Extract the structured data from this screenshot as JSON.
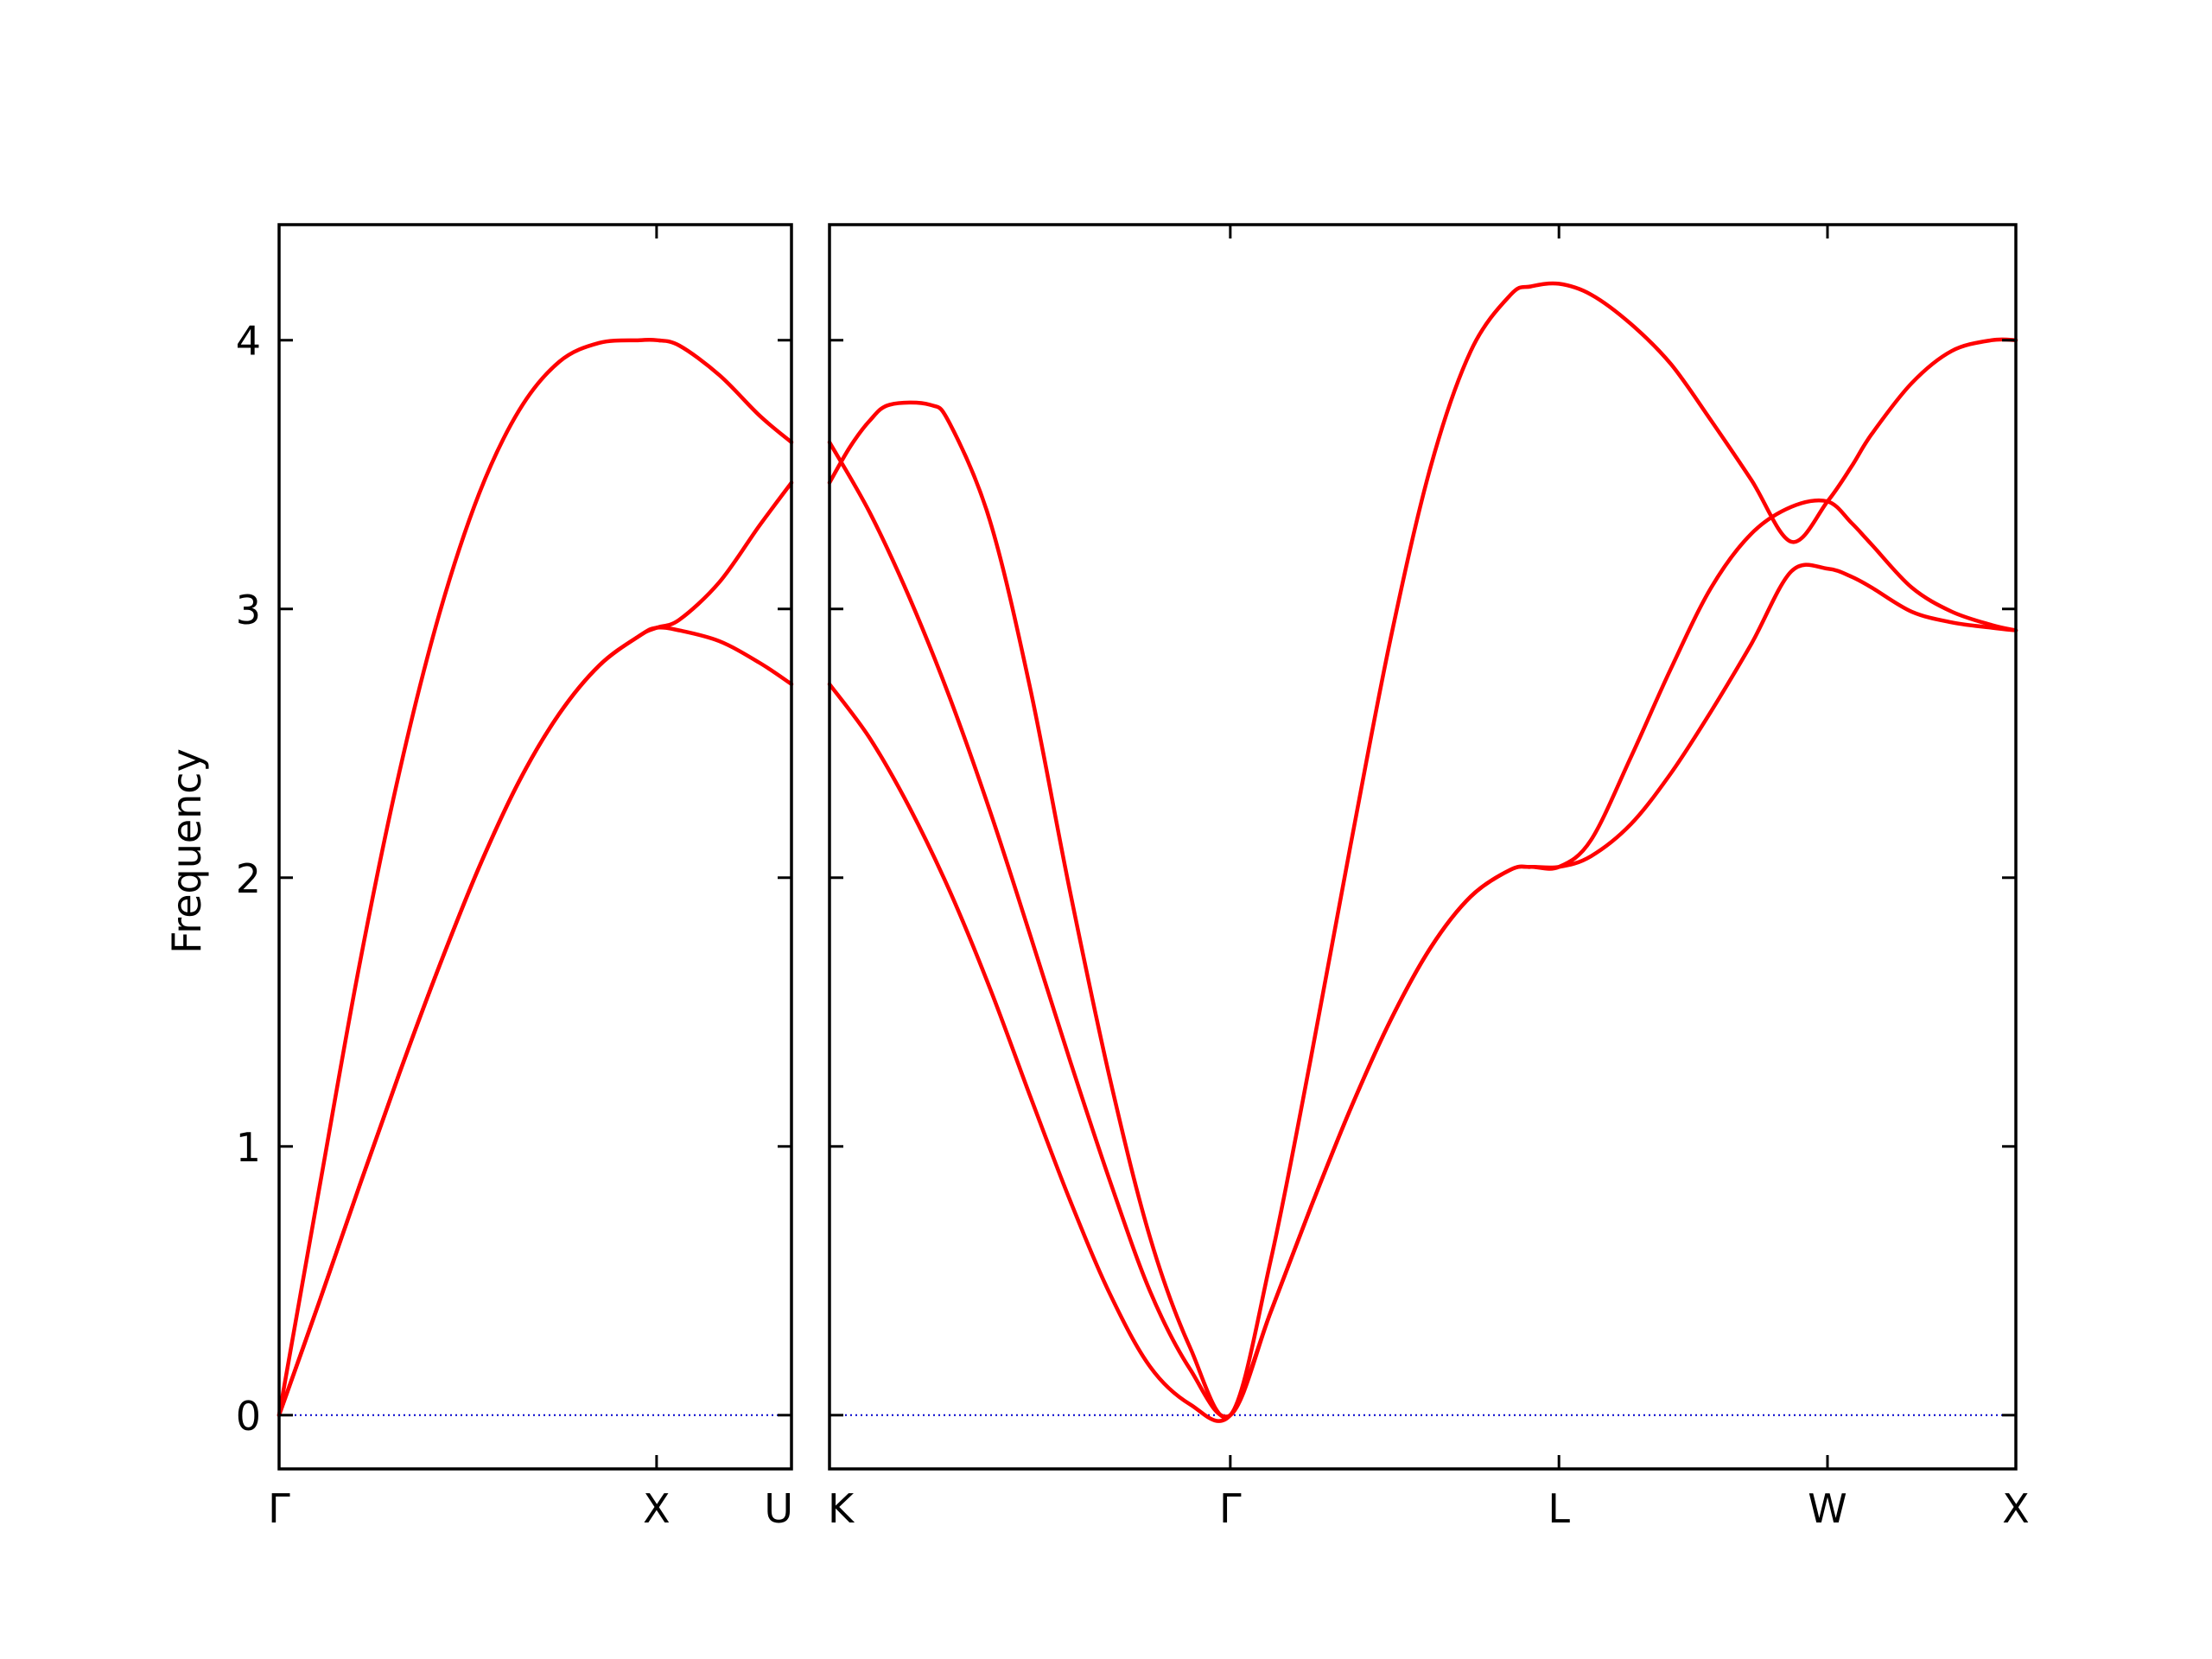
{
  "chart_data": {
    "type": "line",
    "ylabel": "Frequency",
    "ylim": [
      -0.2,
      4.43
    ],
    "y_ticks": [
      "0",
      "1",
      "2",
      "3",
      "4"
    ],
    "line_color": "#ff0000",
    "zero_line_color": "#0000cc",
    "grid": false,
    "panels": [
      {
        "xlim": [
          0,
          1.28
        ],
        "x_tick_positions": [
          0,
          0.943,
          1.28
        ],
        "x_tick_labels": [
          "Γ",
          "X",
          "U"
        ],
        "series": [
          {
            "x": [
              0,
              0.1,
              0.2,
              0.3,
              0.4,
              0.5,
              0.6,
              0.7,
              0.8,
              0.9,
              0.943,
              1.0,
              1.1,
              1.2,
              1.28
            ],
            "y": [
              0,
              0.84,
              1.67,
              2.39,
              2.98,
              3.43,
              3.74,
              3.92,
              3.99,
              4.0,
              4.0,
              3.98,
              3.87,
              3.72,
              3.62
            ]
          },
          {
            "x": [
              0,
              0.1,
              0.2,
              0.3,
              0.4,
              0.5,
              0.6,
              0.7,
              0.8,
              0.9,
              0.943,
              1.0,
              1.1,
              1.2,
              1.28
            ],
            "y": [
              0,
              0.42,
              0.85,
              1.27,
              1.67,
              2.04,
              2.36,
              2.61,
              2.79,
              2.9,
              2.93,
              2.92,
              2.88,
              2.8,
              2.72
            ]
          },
          {
            "x": [
              0,
              0.1,
              0.2,
              0.3,
              0.4,
              0.5,
              0.6,
              0.7,
              0.8,
              0.9,
              0.943,
              1.0,
              1.1,
              1.2,
              1.28
            ],
            "y": [
              0,
              0.42,
              0.85,
              1.27,
              1.67,
              2.04,
              2.36,
              2.61,
              2.79,
              2.9,
              2.93,
              2.96,
              3.1,
              3.31,
              3.47
            ]
          }
        ]
      },
      {
        "xlim": [
          0,
          2.96
        ],
        "x_tick_positions": [
          0,
          1.0,
          1.82,
          2.49,
          2.96
        ],
        "x_tick_labels": [
          "K",
          "Γ",
          "L",
          "W",
          "X"
        ],
        "series": [
          {
            "x": [
              0,
              0.05,
              0.1,
              0.15,
              0.25,
              0.3,
              0.4,
              0.5,
              0.6,
              0.7,
              0.8,
              0.9,
              1.0,
              1.1,
              1.2,
              1.3,
              1.4,
              1.5,
              1.6,
              1.7,
              1.75,
              1.82,
              1.9,
              2.0,
              2.1,
              2.2,
              2.3,
              2.4,
              2.49,
              2.55,
              2.6,
              2.7,
              2.8,
              2.9,
              2.96
            ],
            "y": [
              3.47,
              3.6,
              3.7,
              3.76,
              3.76,
              3.69,
              3.33,
              2.71,
              1.95,
              1.25,
              0.66,
              0.25,
              0,
              0.57,
              1.32,
              2.12,
              2.89,
              3.53,
              3.96,
              4.17,
              4.2,
              4.21,
              4.17,
              4.06,
              3.91,
              3.7,
              3.48,
              3.25,
              3.4,
              3.53,
              3.65,
              3.84,
              3.96,
              4.0,
              4.0
            ]
          },
          {
            "x": [
              0,
              0.1,
              0.2,
              0.3,
              0.4,
              0.5,
              0.6,
              0.7,
              0.8,
              0.9,
              1.0,
              1.1,
              1.2,
              1.3,
              1.4,
              1.5,
              1.6,
              1.7,
              1.75,
              1.82,
              1.9,
              2.0,
              2.1,
              2.2,
              2.3,
              2.4,
              2.49,
              2.55,
              2.6,
              2.7,
              2.8,
              2.9,
              2.96
            ],
            "y": [
              3.62,
              3.36,
              3.04,
              2.67,
              2.25,
              1.79,
              1.32,
              0.87,
              0.46,
              0.17,
              0,
              0.38,
              0.77,
              1.14,
              1.47,
              1.74,
              1.93,
              2.03,
              2.04,
              2.04,
              2.08,
              2.2,
              2.39,
              2.62,
              2.87,
              3.14,
              3.15,
              3.12,
              3.08,
              2.99,
              2.95,
              2.93,
              2.92
            ]
          },
          {
            "x": [
              0,
              0.1,
              0.2,
              0.3,
              0.4,
              0.5,
              0.6,
              0.7,
              0.8,
              0.9,
              1.0,
              1.1,
              1.2,
              1.3,
              1.4,
              1.5,
              1.6,
              1.7,
              1.75,
              1.82,
              1.9,
              2.0,
              2.1,
              2.2,
              2.3,
              2.4,
              2.49,
              2.55,
              2.6,
              2.7,
              2.8,
              2.9,
              2.96
            ],
            "y": [
              2.72,
              2.52,
              2.26,
              1.95,
              1.59,
              1.19,
              0.8,
              0.45,
              0.18,
              0.04,
              0,
              0.38,
              0.77,
              1.14,
              1.47,
              1.74,
              1.93,
              2.03,
              2.04,
              2.04,
              2.14,
              2.45,
              2.78,
              3.08,
              3.28,
              3.38,
              3.4,
              3.32,
              3.24,
              3.08,
              2.99,
              2.94,
              2.92
            ]
          }
        ]
      }
    ]
  }
}
